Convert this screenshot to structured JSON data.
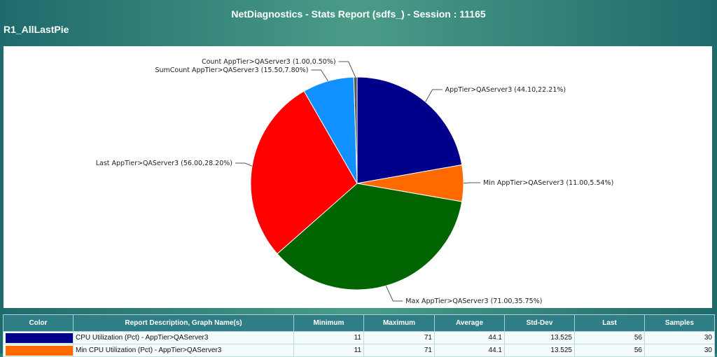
{
  "report_title": "NetDiagnostics - Stats Report (sdfs_) - Session : 11165",
  "graph_name": "R1_AllLastPie",
  "chart_data": {
    "type": "pie",
    "title": "",
    "slices": [
      {
        "label": "AppTier>QAServer3 (44.10,22.21%)",
        "value": 44.1,
        "percent": 22.21,
        "color": "#00008b"
      },
      {
        "label": "Min AppTier>QAServer3 (11.00,5.54%)",
        "value": 11.0,
        "percent": 5.54,
        "color": "#ff6a00"
      },
      {
        "label": "Max AppTier>QAServer3 (71.00,35.75%)",
        "value": 71.0,
        "percent": 35.75,
        "color": "#006400"
      },
      {
        "label": "Last AppTier>QAServer3 (56.00,28.20%)",
        "value": 56.0,
        "percent": 28.2,
        "color": "#ff0000"
      },
      {
        "label": "SumCount AppTier>QAServer3 (15.50,7.80%)",
        "value": 15.5,
        "percent": 7.8,
        "color": "#1190ff"
      },
      {
        "label": "Count AppTier>QAServer3 (1.00,0.50%)",
        "value": 1.0,
        "percent": 0.5,
        "color": "#555555"
      }
    ]
  },
  "table": {
    "headers": [
      "Color",
      "Report Description, Graph Name(s)",
      "Minimum",
      "Maximum",
      "Average",
      "Std-Dev",
      "Last",
      "Samples"
    ],
    "rows": [
      {
        "color": "#00008b",
        "description": "CPU Utilization (Pct) - AppTier>QAServer3",
        "minimum": "11",
        "maximum": "71",
        "average": "44.1",
        "stddev": "13.525",
        "last": "56",
        "samples": "30"
      },
      {
        "color": "#ff6a00",
        "description": "Min CPU Utilization (Pct) - AppTier>QAServer3",
        "minimum": "11",
        "maximum": "71",
        "average": "44.1",
        "stddev": "13.525",
        "last": "56",
        "samples": "30"
      }
    ]
  }
}
